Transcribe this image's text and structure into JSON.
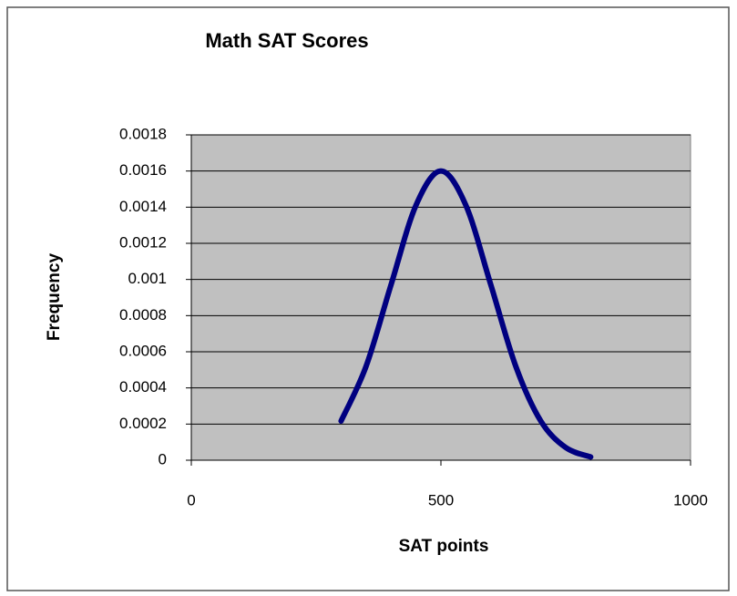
{
  "chart_data": {
    "type": "line",
    "title": "Math SAT Scores",
    "x_label": "SAT points",
    "y_label": "Frequency",
    "x": [
      300,
      350,
      400,
      450,
      500,
      550,
      600,
      650,
      700,
      750,
      800
    ],
    "series": [
      {
        "color": "#000080",
        "values": [
          0.000217,
          0.000519,
          0.00097,
          0.00141,
          0.0016,
          0.00141,
          0.00097,
          0.000519,
          0.000217,
          7e-05,
          1.8e-05
        ]
      }
    ],
    "xlim": [
      0,
      1000
    ],
    "xticks": [
      0,
      500,
      1000
    ],
    "ylim": [
      0,
      0.0018
    ],
    "yticks": [
      0,
      0.0002,
      0.0004,
      0.0006,
      0.0008,
      0.001,
      0.0012,
      0.0014,
      0.0016,
      0.0018
    ],
    "grid": true,
    "plot_background": "#c0c0c0"
  }
}
